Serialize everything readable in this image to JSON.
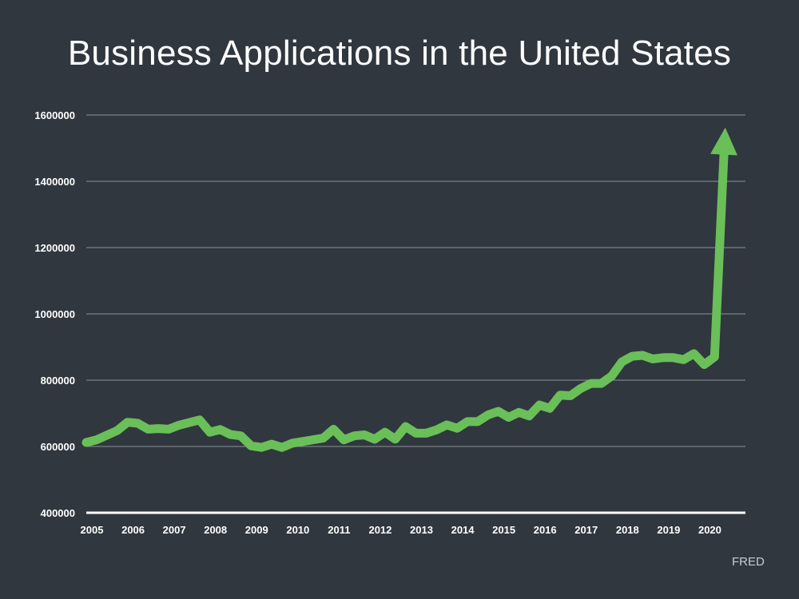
{
  "page": {
    "title": "Business Applications in the United States",
    "source": "FRED"
  },
  "colors": {
    "background": "#30373f",
    "line": "#6abf59",
    "text": "#ffffff",
    "grid": "#8a9096",
    "axis": "#ffffff"
  },
  "chart_data": {
    "type": "line",
    "title": "Business Applications in the United States",
    "xlabel": "",
    "ylabel": "",
    "xlim": [
      2005,
      2021
    ],
    "ylim": [
      400000,
      1600000
    ],
    "grid": true,
    "y_ticks": [
      400000,
      600000,
      800000,
      1000000,
      1200000,
      1400000,
      1600000
    ],
    "y_tick_labels": [
      "400000",
      "600000",
      "800000",
      "1000000",
      "1200000",
      "1400000",
      "1600000"
    ],
    "x_ticks": [
      2005,
      2006,
      2007,
      2008,
      2009,
      2010,
      2011,
      2012,
      2013,
      2014,
      2015,
      2016,
      2017,
      2018,
      2019,
      2020
    ],
    "x_tick_labels": [
      "2005",
      "2006",
      "2007",
      "2008",
      "2009",
      "2010",
      "2011",
      "2012",
      "2013",
      "2014",
      "2015",
      "2016",
      "2017",
      "2018",
      "2019",
      "2020"
    ],
    "arrow_at_end": true,
    "series": [
      {
        "x": [
          2005.0,
          2005.25,
          2005.5,
          2005.75,
          2006.0,
          2006.25,
          2006.5,
          2006.75,
          2007.0,
          2007.25,
          2007.5,
          2007.75,
          2008.0,
          2008.25,
          2008.5,
          2008.75,
          2009.0,
          2009.25,
          2009.5,
          2009.75,
          2010.0,
          2010.25,
          2010.5,
          2010.75,
          2011.0,
          2011.25,
          2011.5,
          2011.75,
          2012.0,
          2012.25,
          2012.5,
          2012.75,
          2013.0,
          2013.25,
          2013.5,
          2013.75,
          2014.0,
          2014.25,
          2014.5,
          2014.75,
          2015.0,
          2015.25,
          2015.5,
          2015.75,
          2016.0,
          2016.25,
          2016.5,
          2016.75,
          2017.0,
          2017.25,
          2017.5,
          2017.75,
          2018.0,
          2018.25,
          2018.5,
          2018.75,
          2019.0,
          2019.25,
          2019.5,
          2019.75,
          2020.0,
          2020.25,
          2020.5
        ],
        "values": [
          612000,
          620000,
          634000,
          648000,
          673000,
          670000,
          652000,
          654000,
          652000,
          664000,
          672000,
          680000,
          643000,
          651000,
          636000,
          632000,
          602000,
          597000,
          607000,
          597000,
          610000,
          615000,
          620000,
          625000,
          652000,
          620000,
          632000,
          635000,
          622000,
          643000,
          622000,
          660000,
          640000,
          640000,
          650000,
          665000,
          655000,
          675000,
          675000,
          695000,
          706000,
          688000,
          703000,
          692000,
          725000,
          715000,
          755000,
          753000,
          775000,
          790000,
          790000,
          812000,
          855000,
          872000,
          875000,
          864000,
          868000,
          868000,
          862000,
          880000,
          847000,
          870000,
          1490000
        ]
      }
    ]
  }
}
